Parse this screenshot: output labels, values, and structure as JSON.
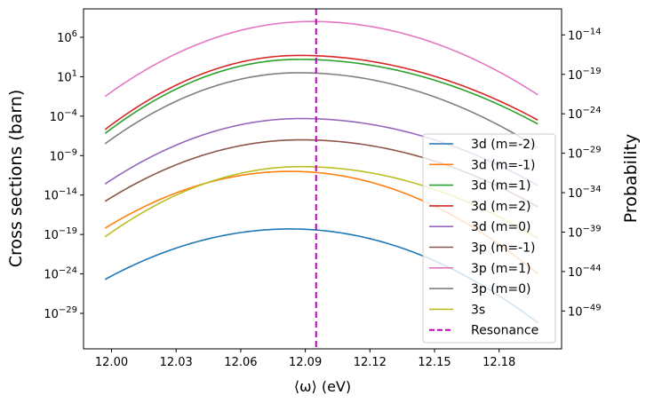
{
  "chart_data": {
    "type": "line",
    "xlabel": "⟨ω⟩ (eV)",
    "ylabel": "Cross sections (barn)",
    "y2label": "Probability",
    "xlim": [
      11.987,
      12.209
    ],
    "ylim_log10": [
      -33.5,
      9.6
    ],
    "y2_offset_log10": -20,
    "x_ticks": [
      12.0,
      12.03,
      12.06,
      12.09,
      12.12,
      12.15,
      12.18
    ],
    "x_tick_labels": [
      "12.00",
      "12.03",
      "12.06",
      "12.09",
      "12.12",
      "12.15",
      "12.18"
    ],
    "y_tick_exponents": [
      6,
      1,
      -4,
      -9,
      -14,
      -19,
      -24,
      -29
    ],
    "y_tick_labels": [
      "10",
      "10",
      "10",
      "10",
      "10",
      "10",
      "10",
      "10"
    ],
    "y_tick_exp_labels": [
      "6",
      "1",
      "−4",
      "−9",
      "−14",
      "−19",
      "−24",
      "−29"
    ],
    "y2_tick_labels": [
      "10",
      "10",
      "10",
      "10",
      "10",
      "10",
      "10",
      "10"
    ],
    "y2_tick_exp_labels": [
      "−14",
      "−19",
      "−24",
      "−29",
      "−34",
      "−39",
      "−44",
      "−49"
    ],
    "x_start": 11.997,
    "x_end": 12.198,
    "legend_position": "lower-right",
    "resonance": {
      "name": "Resonance",
      "x": 12.095,
      "color": "#bf00bf"
    },
    "series": [
      {
        "name": "3d (m=-2)",
        "color": "#1f77b4",
        "peak_x": 12.083,
        "peak_log10": -18.3,
        "start_log10": -24.7,
        "end_log10": -30.2
      },
      {
        "name": "3d (m=-1)",
        "color": "#ff7f0e",
        "peak_x": 12.083,
        "peak_log10": -11.0,
        "start_log10": -18.2,
        "end_log10": -24.0
      },
      {
        "name": "3d (m=1)",
        "color": "#2ca02c",
        "peak_x": 12.087,
        "peak_log10": 3.2,
        "start_log10": -6.2,
        "end_log10": -5.0
      },
      {
        "name": "3d (m=2)",
        "color": "#d62728",
        "peak_x": 12.087,
        "peak_log10": 3.7,
        "start_log10": -5.7,
        "end_log10": -4.5
      },
      {
        "name": "3d (m=0)",
        "color": "#9467bd",
        "peak_x": 12.088,
        "peak_log10": -4.3,
        "start_log10": -12.6,
        "end_log10": -12.8
      },
      {
        "name": "3p (m=-1)",
        "color": "#8c564b",
        "peak_x": 12.088,
        "peak_log10": -7.0,
        "start_log10": -14.8,
        "end_log10": -15.5
      },
      {
        "name": "3p (m=1)",
        "color": "#e377c2",
        "peak_x": 12.093,
        "peak_log10": 8.0,
        "start_log10": -1.5,
        "end_log10": -1.3
      },
      {
        "name": "3p (m=0)",
        "color": "#7f7f7f",
        "peak_x": 12.087,
        "peak_log10": 1.5,
        "start_log10": -7.5,
        "end_log10": -8.0
      },
      {
        "name": "3s",
        "color": "#bcbd22",
        "peak_x": 12.088,
        "peak_log10": -10.4,
        "start_log10": -19.3,
        "end_log10": -19.5
      }
    ]
  }
}
